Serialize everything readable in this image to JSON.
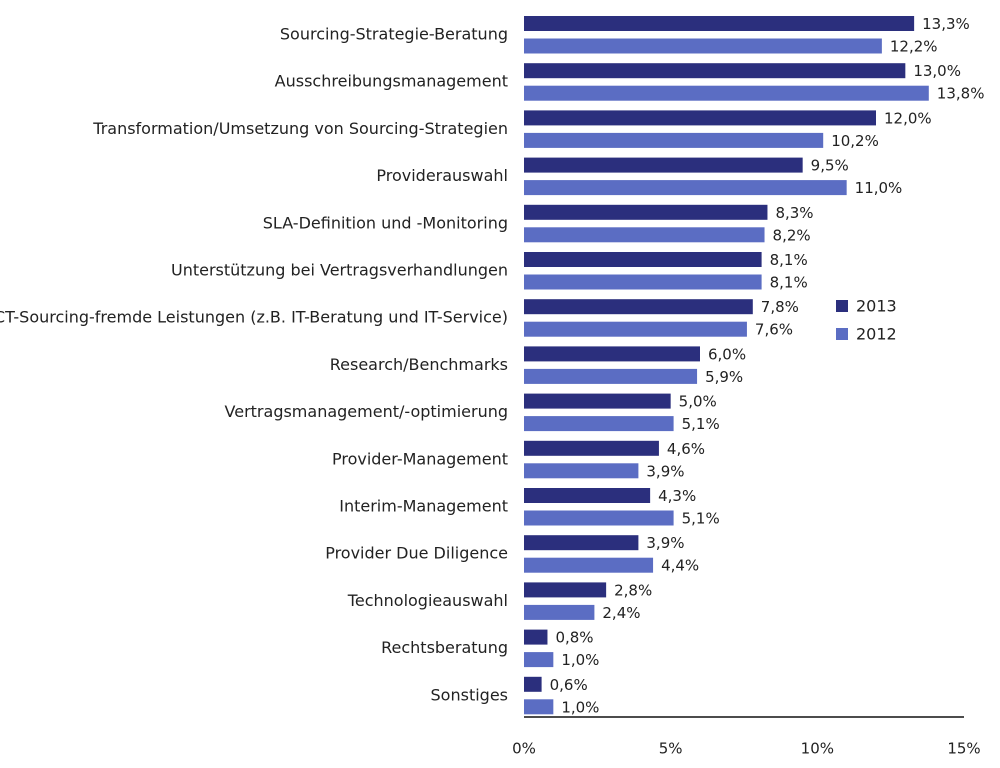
{
  "chart_data": {
    "type": "bar",
    "orientation": "horizontal",
    "categories": [
      "Sourcing-Strategie-Beratung",
      "Ausschreibungsmanagement",
      "Transformation/Umsetzung von Sourcing-Strategien",
      "Providerauswahl",
      "SLA-Definition und -Monitoring",
      "Unterstützung bei Vertragsverhandlungen",
      "ICT-Sourcing-fremde Leistungen (z.B. IT-Beratung und IT-Service)",
      "Research/Benchmarks",
      "Vertragsmanagement/-optimierung",
      "Provider-Management",
      "Interim-Management",
      "Provider Due Diligence",
      "Technologieauswahl",
      "Rechtsberatung",
      "Sonstiges"
    ],
    "series": [
      {
        "name": "2013",
        "color": "#2B2F7D",
        "values": [
          13.3,
          13.0,
          12.0,
          9.5,
          8.3,
          8.1,
          7.8,
          6.0,
          5.0,
          4.6,
          4.3,
          3.9,
          2.8,
          0.8,
          0.6
        ],
        "labels": [
          "13,3%",
          "13,0%",
          "12,0%",
          "9,5%",
          "8,3%",
          "8,1%",
          "7,8%",
          "6,0%",
          "5,0%",
          "4,6%",
          "4,3%",
          "3,9%",
          "2,8%",
          "0,8%",
          "0,6%"
        ]
      },
      {
        "name": "2012",
        "color": "#5B6DC3",
        "values": [
          12.2,
          13.8,
          10.2,
          11.0,
          8.2,
          8.1,
          7.6,
          5.9,
          5.1,
          3.9,
          5.1,
          4.4,
          2.4,
          1.0,
          1.0
        ],
        "labels": [
          "12,2%",
          "13,8%",
          "10,2%",
          "11,0%",
          "8,2%",
          "8,1%",
          "7,6%",
          "5,9%",
          "5,1%",
          "3,9%",
          "5,1%",
          "4,4%",
          "2,4%",
          "1,0%",
          "1,0%"
        ]
      }
    ],
    "xlim": [
      0,
      15
    ],
    "xticks": [
      0,
      5,
      10,
      15
    ],
    "xtick_labels": [
      "0%",
      "5%",
      "10%",
      "15%"
    ],
    "legend": {
      "placement": "right",
      "entries": [
        "2013",
        "2012"
      ]
    },
    "grid": false
  }
}
